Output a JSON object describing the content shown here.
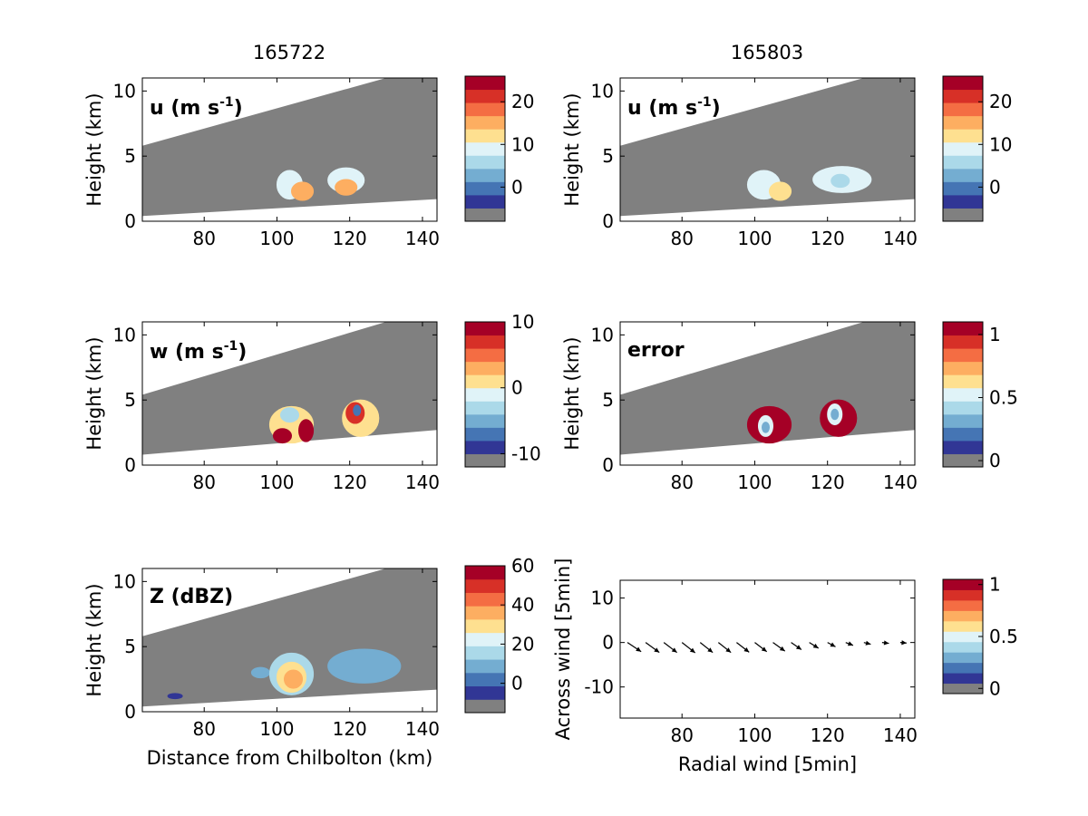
{
  "figure": {
    "column_titles": [
      "165722",
      "165803"
    ],
    "x_label": "Distance from Chilbolton (km)",
    "x_ticks": [
      "80",
      "100",
      "120",
      "140"
    ]
  },
  "palette": {
    "scale": [
      "#313695",
      "#4575b4",
      "#74add1",
      "#abd9e9",
      "#e0f3f8",
      "#fee090",
      "#fdae61",
      "#f46d43",
      "#d73027",
      "#a50026"
    ],
    "no_data": "#808080",
    "background": "#ffffff"
  },
  "chart_data": [
    {
      "type": "heatmap",
      "title": "165722",
      "label": "u (m s-1)",
      "label_main": "u (m s",
      "label_sup": "-1",
      "label_close": ")",
      "ylabel": "Height (km)",
      "xlim": [
        63,
        144
      ],
      "ylim": [
        0,
        11
      ],
      "x_ticks": [
        80,
        100,
        120,
        140
      ],
      "y_ticks": [
        0,
        5,
        10
      ],
      "colorbar": {
        "min": -8,
        "max": 26,
        "ticks": [
          0,
          10,
          20
        ],
        "tick_labels": [
          "0",
          "10",
          "20"
        ]
      },
      "scan_top": [
        [
          63,
          5.8
        ],
        [
          130,
          11
        ]
      ],
      "scan_bottom": [
        [
          63,
          0.4
        ],
        [
          144,
          1.7
        ]
      ],
      "echoes": [
        {
          "x": [
            100,
            107
          ],
          "y": [
            1.7,
            3.9
          ],
          "value": 8
        },
        {
          "x": [
            104,
            110
          ],
          "y": [
            1.6,
            3.0
          ],
          "value": 13
        },
        {
          "x": [
            114,
            124
          ],
          "y": [
            2.2,
            4.1
          ],
          "value": 8
        },
        {
          "x": [
            116,
            122
          ],
          "y": [
            2.0,
            3.2
          ],
          "value": 13
        }
      ]
    },
    {
      "type": "heatmap",
      "title": "165803",
      "label": "u (m s-1)",
      "label_main": "u (m s",
      "label_sup": "-1",
      "label_close": ")",
      "ylabel": "Height (km)",
      "xlim": [
        63,
        144
      ],
      "ylim": [
        0,
        11
      ],
      "x_ticks": [
        80,
        100,
        120,
        140
      ],
      "y_ticks": [
        0,
        5,
        10
      ],
      "colorbar": {
        "min": -8,
        "max": 26,
        "ticks": [
          0,
          10,
          20
        ],
        "tick_labels": [
          "0",
          "10",
          "20"
        ]
      },
      "scan_top": [
        [
          63,
          5.8
        ],
        [
          130,
          11
        ]
      ],
      "scan_bottom": [
        [
          63,
          0.4
        ],
        [
          144,
          1.7
        ]
      ],
      "echoes": [
        {
          "x": [
            98,
            107
          ],
          "y": [
            1.7,
            3.9
          ],
          "value": 8
        },
        {
          "x": [
            104,
            110
          ],
          "y": [
            1.6,
            3.0
          ],
          "value": 12
        },
        {
          "x": [
            116,
            132
          ],
          "y": [
            2.2,
            4.2
          ],
          "value": 8
        },
        {
          "x": [
            121,
            126
          ],
          "y": [
            2.6,
            3.6
          ],
          "value": 3
        }
      ]
    },
    {
      "type": "heatmap",
      "label": "w (m s-1)",
      "label_main": "w (m s",
      "label_sup": "-1",
      "label_close": ")",
      "ylabel": "Height (km)",
      "xlim": [
        63,
        144
      ],
      "ylim": [
        0,
        11
      ],
      "x_ticks": [
        80,
        100,
        120,
        140
      ],
      "y_ticks": [
        0,
        5,
        10
      ],
      "colorbar": {
        "min": -12,
        "max": 10,
        "ticks": [
          -10,
          0,
          10
        ],
        "tick_labels": [
          "-10",
          "0",
          "10"
        ]
      },
      "scan_top": [
        [
          63,
          5.4
        ],
        [
          130,
          11
        ]
      ],
      "scan_bottom": [
        [
          63,
          0.8
        ],
        [
          144,
          2.7
        ]
      ],
      "echoes": [
        {
          "x": [
            98,
            110
          ],
          "y": [
            1.7,
            4.5
          ],
          "value": 1
        },
        {
          "x": [
            99,
            104
          ],
          "y": [
            1.7,
            2.8
          ],
          "value": 8
        },
        {
          "x": [
            106,
            110
          ],
          "y": [
            1.8,
            3.5
          ],
          "value": 9
        },
        {
          "x": [
            101,
            106
          ],
          "y": [
            3.3,
            4.4
          ],
          "value": -4
        },
        {
          "x": [
            118,
            128
          ],
          "y": [
            2.2,
            5.0
          ],
          "value": 1
        },
        {
          "x": [
            119,
            124
          ],
          "y": [
            3.2,
            4.8
          ],
          "value": 7
        },
        {
          "x": [
            121,
            123
          ],
          "y": [
            3.8,
            4.6
          ],
          "value": -8
        }
      ]
    },
    {
      "type": "heatmap",
      "label": "error",
      "ylabel": "Height (km)",
      "xlim": [
        63,
        144
      ],
      "ylim": [
        0,
        11
      ],
      "x_ticks": [
        80,
        100,
        120,
        140
      ],
      "y_ticks": [
        0,
        5,
        10
      ],
      "colorbar": {
        "min": -0.05,
        "max": 1.1,
        "ticks": [
          0,
          0.5,
          1
        ],
        "tick_labels": [
          "0",
          "0.5",
          "1"
        ]
      },
      "scan_top": [
        [
          63,
          5.4
        ],
        [
          130,
          11
        ]
      ],
      "scan_bottom": [
        [
          63,
          0.8
        ],
        [
          144,
          2.7
        ]
      ],
      "echoes": [
        {
          "x": [
            98,
            110
          ],
          "y": [
            1.7,
            4.5
          ],
          "value": 1.05
        },
        {
          "x": [
            101,
            105
          ],
          "y": [
            2.2,
            3.8
          ],
          "value": 0.45
        },
        {
          "x": [
            102,
            104
          ],
          "y": [
            2.5,
            3.3
          ],
          "value": 0.2
        },
        {
          "x": [
            118,
            128
          ],
          "y": [
            2.2,
            5.0
          ],
          "value": 1.05
        },
        {
          "x": [
            120,
            124
          ],
          "y": [
            3.1,
            4.7
          ],
          "value": 0.5
        },
        {
          "x": [
            121,
            123
          ],
          "y": [
            3.5,
            4.3
          ],
          "value": 0.25
        }
      ]
    },
    {
      "type": "heatmap",
      "label": "Z (dBZ)",
      "ylabel": "Height (km)",
      "xlabel": "Distance from Chilbolton (km)",
      "xlim": [
        63,
        144
      ],
      "ylim": [
        0,
        11
      ],
      "x_ticks": [
        80,
        100,
        120,
        140
      ],
      "y_ticks": [
        0,
        5,
        10
      ],
      "colorbar": {
        "min": -15,
        "max": 60,
        "ticks": [
          0,
          20,
          40,
          60
        ],
        "tick_labels": [
          "0",
          "20",
          "40",
          "60"
        ]
      },
      "scan_top": [
        [
          63,
          5.8
        ],
        [
          130,
          11
        ]
      ],
      "scan_bottom": [
        [
          63,
          0.4
        ],
        [
          144,
          1.7
        ]
      ],
      "echoes": [
        {
          "x": [
            93,
            98
          ],
          "y": [
            2.6,
            3.4
          ],
          "value": 5
        },
        {
          "x": [
            98,
            110
          ],
          "y": [
            1.3,
            4.5
          ],
          "value": 12
        },
        {
          "x": [
            100,
            108
          ],
          "y": [
            1.5,
            3.8
          ],
          "value": 24
        },
        {
          "x": [
            102,
            107
          ],
          "y": [
            1.8,
            3.2
          ],
          "value": 30
        },
        {
          "x": [
            114,
            134
          ],
          "y": [
            2.2,
            4.8
          ],
          "value": 3
        },
        {
          "x": [
            70,
            74
          ],
          "y": [
            1.0,
            1.4
          ],
          "value": -10
        }
      ]
    },
    {
      "type": "scatter",
      "subtype": "quiver",
      "xlabel": "Radial wind [5min]",
      "ylabel": "Across wind [5min]",
      "xlim": [
        63,
        144
      ],
      "ylim": [
        -17,
        14
      ],
      "x_ticks": [
        80,
        100,
        120,
        140
      ],
      "y_ticks": [
        -10,
        0,
        10
      ],
      "colorbar": {
        "min": -0.05,
        "max": 1.05,
        "ticks": [
          0,
          0.5,
          1
        ],
        "tick_labels": [
          "0",
          "0.5",
          "1"
        ]
      },
      "x": [
        65,
        70,
        75,
        80,
        85,
        90,
        95,
        100,
        105,
        110,
        115,
        120,
        125,
        130,
        135,
        140
      ],
      "u": [
        2.4,
        2.4,
        2.3,
        2.3,
        2.2,
        2.2,
        2.2,
        2.1,
        2.1,
        1.8,
        1.6,
        1.4,
        1.3,
        1.2,
        1.2,
        1.1
      ],
      "v": [
        -3.2,
        -3.5,
        -3.5,
        -3.6,
        -3.5,
        -3.5,
        -3.4,
        -3.2,
        -3.0,
        -2.5,
        -2.0,
        -1.5,
        -1.0,
        -0.6,
        -0.3,
        -0.2
      ]
    }
  ]
}
